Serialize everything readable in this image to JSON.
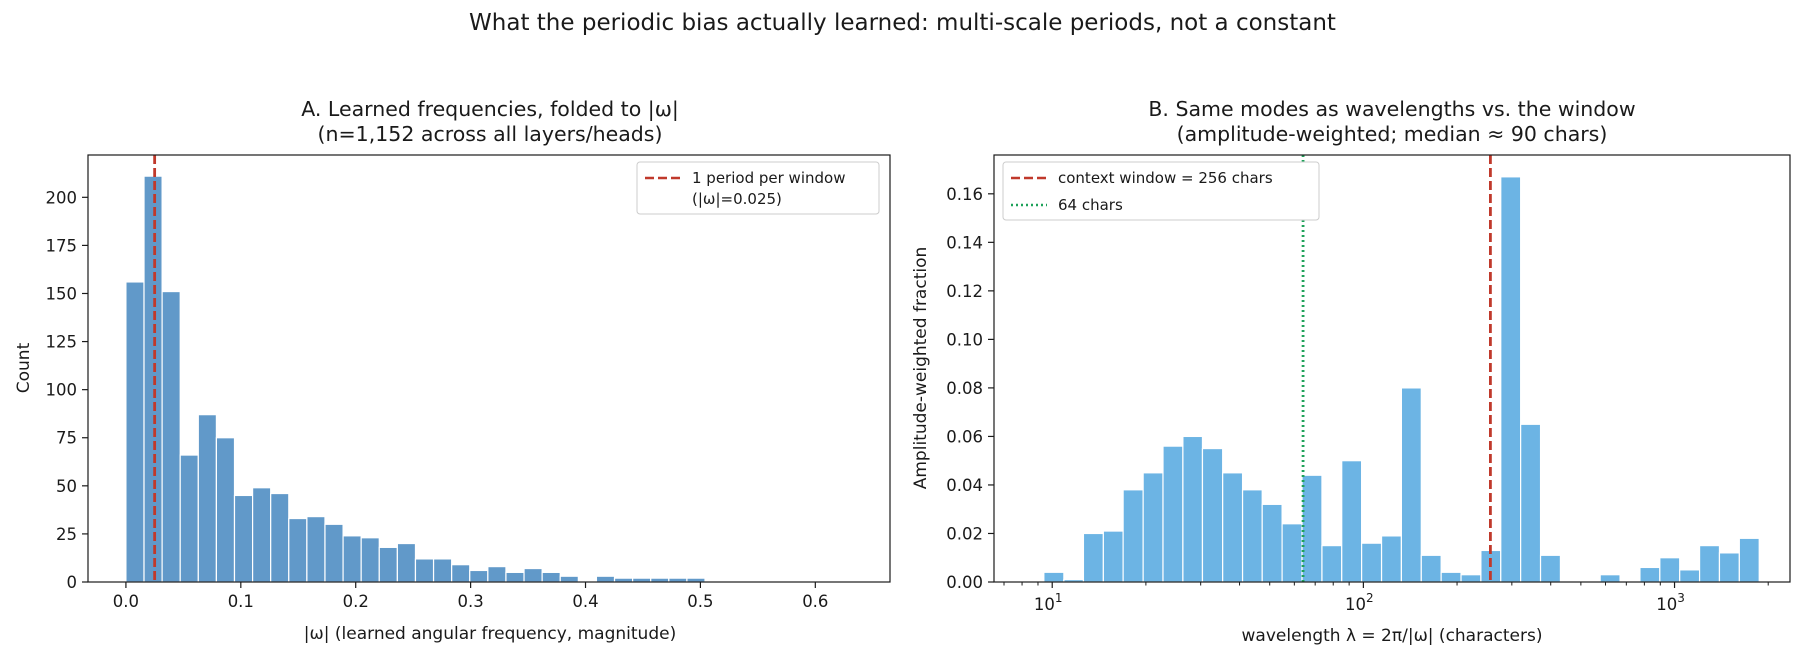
{
  "figure": {
    "title": "What the periodic bias actually learned: multi-scale periods, not a constant"
  },
  "chart_data": [
    {
      "type": "bar",
      "panel": "A",
      "title": "A. Learned frequencies, folded to |ω|",
      "subtitle": "(n=1,152 across all layers/heads)",
      "xlabel": "|ω|  (learned angular frequency, magnitude)",
      "ylabel": "Count",
      "xlim": [
        -0.033,
        0.665
      ],
      "ylim": [
        0,
        222
      ],
      "x_scale": "linear",
      "xticks": [
        0.0,
        0.1,
        0.2,
        0.3,
        0.4,
        0.5,
        0.6
      ],
      "xtick_labels": [
        "0.0",
        "0.1",
        "0.2",
        "0.3",
        "0.4",
        "0.5",
        "0.6"
      ],
      "yticks": [
        0,
        25,
        50,
        75,
        100,
        125,
        150,
        175,
        200
      ],
      "ytick_labels": [
        "0",
        "25",
        "50",
        "75",
        "100",
        "125",
        "150",
        "175",
        "200"
      ],
      "bar_color": "#6199c9",
      "bin_width": 0.01575,
      "bins": [
        {
          "x0": 0.0,
          "count": 156
        },
        {
          "x0": 0.01575,
          "count": 211
        },
        {
          "x0": 0.0315,
          "count": 151
        },
        {
          "x0": 0.04725,
          "count": 66
        },
        {
          "x0": 0.063,
          "count": 87
        },
        {
          "x0": 0.07875,
          "count": 75
        },
        {
          "x0": 0.0945,
          "count": 45
        },
        {
          "x0": 0.11025,
          "count": 49
        },
        {
          "x0": 0.126,
          "count": 46
        },
        {
          "x0": 0.14175,
          "count": 33
        },
        {
          "x0": 0.1575,
          "count": 34
        },
        {
          "x0": 0.17325,
          "count": 30
        },
        {
          "x0": 0.189,
          "count": 24
        },
        {
          "x0": 0.20475,
          "count": 23
        },
        {
          "x0": 0.2205,
          "count": 18
        },
        {
          "x0": 0.23625,
          "count": 20
        },
        {
          "x0": 0.252,
          "count": 12
        },
        {
          "x0": 0.26775,
          "count": 12
        },
        {
          "x0": 0.2835,
          "count": 9
        },
        {
          "x0": 0.29925,
          "count": 6
        },
        {
          "x0": 0.315,
          "count": 8
        },
        {
          "x0": 0.33075,
          "count": 5
        },
        {
          "x0": 0.3465,
          "count": 7
        },
        {
          "x0": 0.36225,
          "count": 5
        },
        {
          "x0": 0.378,
          "count": 3
        },
        {
          "x0": 0.39375,
          "count": 0
        },
        {
          "x0": 0.4095,
          "count": 3
        },
        {
          "x0": 0.42525,
          "count": 2
        },
        {
          "x0": 0.441,
          "count": 2
        },
        {
          "x0": 0.45675,
          "count": 2
        },
        {
          "x0": 0.4725,
          "count": 2
        },
        {
          "x0": 0.48825,
          "count": 2
        }
      ],
      "reference_lines": [
        {
          "x": 0.025,
          "color": "#c0392b",
          "style": "dashed",
          "label_line1": "1 period per window",
          "label_line2": "(|ω|=0.025)"
        }
      ],
      "legend_position": "upper right"
    },
    {
      "type": "bar",
      "panel": "B",
      "title": "B. Same modes as wavelengths vs. the window",
      "subtitle": "(amplitude-weighted; median ≈ 90 chars)",
      "xlabel": "wavelength λ = 2π/|ω|  (characters)",
      "ylabel": "Amplitude-weighted fraction",
      "x_scale": "log",
      "xlim": [
        6.5,
        2350
      ],
      "ylim": [
        0,
        0.176
      ],
      "xticks": [
        10,
        100,
        1000
      ],
      "xtick_base": "10",
      "xtick_exponents": [
        "1",
        "2",
        "3"
      ],
      "yticks": [
        0.0,
        0.02,
        0.04,
        0.06,
        0.08,
        0.1,
        0.12,
        0.14,
        0.16
      ],
      "ytick_labels": [
        "0.00",
        "0.02",
        "0.04",
        "0.06",
        "0.08",
        "0.10",
        "0.12",
        "0.14",
        "0.16"
      ],
      "bar_color": "#6cb4e4",
      "bins": [
        {
          "x0": 9.4,
          "x1": 10.9,
          "value": 0.004
        },
        {
          "x0": 10.9,
          "x1": 12.6,
          "value": 0.001
        },
        {
          "x0": 12.6,
          "x1": 14.6,
          "value": 0.02
        },
        {
          "x0": 14.6,
          "x1": 16.9,
          "value": 0.021
        },
        {
          "x0": 16.9,
          "x1": 19.6,
          "value": 0.038
        },
        {
          "x0": 19.6,
          "x1": 22.7,
          "value": 0.045
        },
        {
          "x0": 22.7,
          "x1": 26.3,
          "value": 0.056
        },
        {
          "x0": 26.3,
          "x1": 30.4,
          "value": 0.06
        },
        {
          "x0": 30.4,
          "x1": 35.3,
          "value": 0.055
        },
        {
          "x0": 35.3,
          "x1": 40.9,
          "value": 0.045
        },
        {
          "x0": 40.9,
          "x1": 47.3,
          "value": 0.038
        },
        {
          "x0": 47.3,
          "x1": 54.8,
          "value": 0.032
        },
        {
          "x0": 54.8,
          "x1": 63.5,
          "value": 0.024
        },
        {
          "x0": 63.5,
          "x1": 73.6,
          "value": 0.044
        },
        {
          "x0": 73.6,
          "x1": 85.2,
          "value": 0.015
        },
        {
          "x0": 85.2,
          "x1": 98.7,
          "value": 0.05
        },
        {
          "x0": 98.7,
          "x1": 114.4,
          "value": 0.016
        },
        {
          "x0": 114.4,
          "x1": 132.5,
          "value": 0.019
        },
        {
          "x0": 132.5,
          "x1": 153.5,
          "value": 0.08
        },
        {
          "x0": 153.5,
          "x1": 177.8,
          "value": 0.011
        },
        {
          "x0": 177.8,
          "x1": 206.0,
          "value": 0.004
        },
        {
          "x0": 206.0,
          "x1": 238.6,
          "value": 0.003
        },
        {
          "x0": 238.6,
          "x1": 276.4,
          "value": 0.013
        },
        {
          "x0": 276.4,
          "x1": 320.2,
          "value": 0.167
        },
        {
          "x0": 320.2,
          "x1": 371.0,
          "value": 0.065
        },
        {
          "x0": 371.0,
          "x1": 429.8,
          "value": 0.011
        },
        {
          "x0": 429.8,
          "x1": 497.9,
          "value": 0.0
        },
        {
          "x0": 497.9,
          "x1": 576.8,
          "value": 0.0
        },
        {
          "x0": 576.8,
          "x1": 668.2,
          "value": 0.003
        },
        {
          "x0": 668.2,
          "x1": 774.1,
          "value": 0.0
        },
        {
          "x0": 774.1,
          "x1": 896.8,
          "value": 0.006
        },
        {
          "x0": 896.8,
          "x1": 1038.9,
          "value": 0.01
        },
        {
          "x0": 1038.9,
          "x1": 1203.6,
          "value": 0.005
        },
        {
          "x0": 1203.6,
          "x1": 1394.3,
          "value": 0.015
        },
        {
          "x0": 1394.3,
          "x1": 1615.3,
          "value": 0.012
        },
        {
          "x0": 1615.3,
          "x1": 1871.3,
          "value": 0.018
        }
      ],
      "reference_lines": [
        {
          "x": 256,
          "color": "#c0392b",
          "style": "dashed",
          "label": "context window = 256 chars"
        },
        {
          "x": 64,
          "color": "#1fa25a",
          "style": "dotted",
          "label": "64 chars"
        }
      ],
      "legend_position": "upper left"
    }
  ]
}
